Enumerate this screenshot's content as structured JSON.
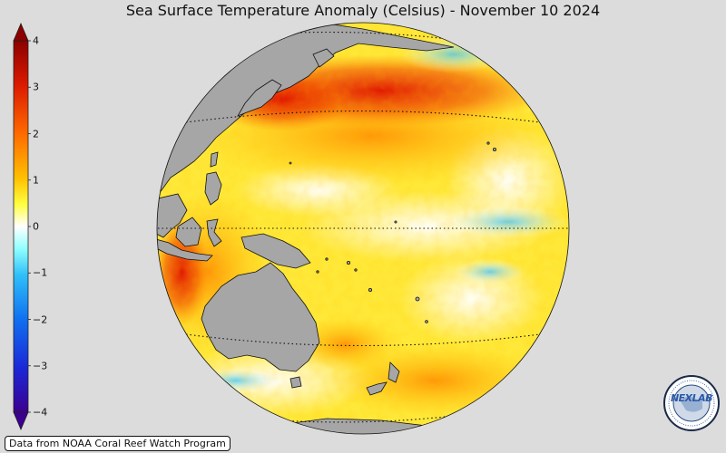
{
  "title": "Sea Surface Temperature Anomaly (Celsius) - November 10 2024",
  "colorbar": {
    "min": -4,
    "max": 4,
    "ticks": [
      "4",
      "3",
      "2",
      "1",
      "0",
      "−1",
      "−2",
      "−3",
      "−4"
    ],
    "extend": "both",
    "colormap": [
      "#3c0090",
      "#1a28d8",
      "#1e78f0",
      "#6fe0f0",
      "#ffffff",
      "#ffff40",
      "#ffb000",
      "#f04000",
      "#8c0000"
    ]
  },
  "map": {
    "projection": "orthographic",
    "land_color": "#a6a6a6",
    "ocean_fill": "anomaly",
    "gridlines": "dotted"
  },
  "credit": "Data from NOAA Coral Reef Watch Program",
  "logo": {
    "text": "NEXLAB",
    "icon": "nexlab-logo-icon"
  }
}
